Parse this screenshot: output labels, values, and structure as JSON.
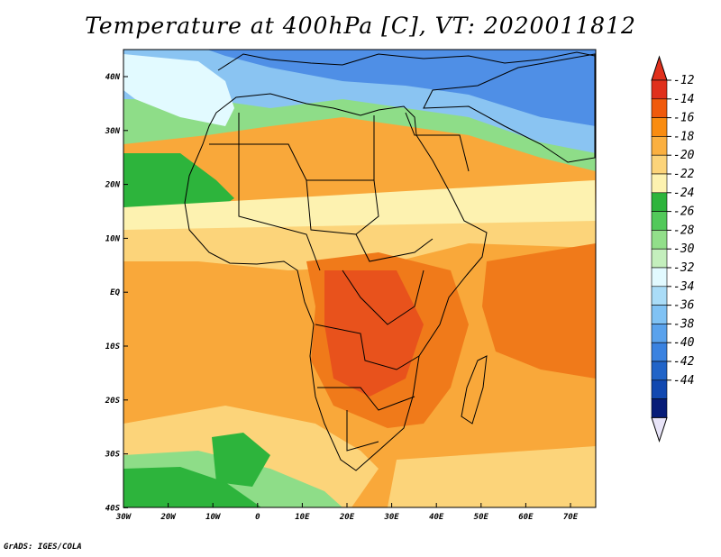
{
  "title": "Temperature at 400hPa [C], VT: 2020011812",
  "credit": "GrADS: IGES/COLA",
  "lat_labels": [
    "40N",
    "30N",
    "20N",
    "10N",
    "EQ",
    "10S",
    "20S",
    "30S",
    "40S"
  ],
  "lon_labels": [
    "30W",
    "20W",
    "10W",
    "0",
    "10E",
    "20E",
    "30E",
    "40E",
    "50E",
    "60E",
    "70E"
  ],
  "colorbar": {
    "labels": [
      "-12",
      "-14",
      "-16",
      "-18",
      "-20",
      "-22",
      "-24",
      "-26",
      "-28",
      "-30",
      "-32",
      "-34",
      "-36",
      "-38",
      "-40",
      "-42",
      "-44"
    ],
    "colors": [
      "#e0301c",
      "#f05a0c",
      "#f98c10",
      "#fbb040",
      "#fcd47a",
      "#fdf2b0",
      "#2db43c",
      "#52c95a",
      "#92df8a",
      "#c4efbd",
      "#e2faff",
      "#aadcf7",
      "#80c2f4",
      "#5aa2ec",
      "#3a82e0",
      "#2164c8",
      "#1148b0",
      "#071c78"
    ],
    "top_color": "#e0301c",
    "bottom_color": "#e8e4f8"
  },
  "map": {
    "colors": {
      "blue": "#4f8fe6",
      "light_blue": "#8ac4f2",
      "pale": "#e2faff",
      "green": "#2db43c",
      "light_green": "#8edd88",
      "yellow": "#fdf2b0",
      "light_orange": "#fcd47a",
      "orange": "#f9a83a",
      "dark_orange": "#f07a1a",
      "red": "#e8521c"
    }
  }
}
